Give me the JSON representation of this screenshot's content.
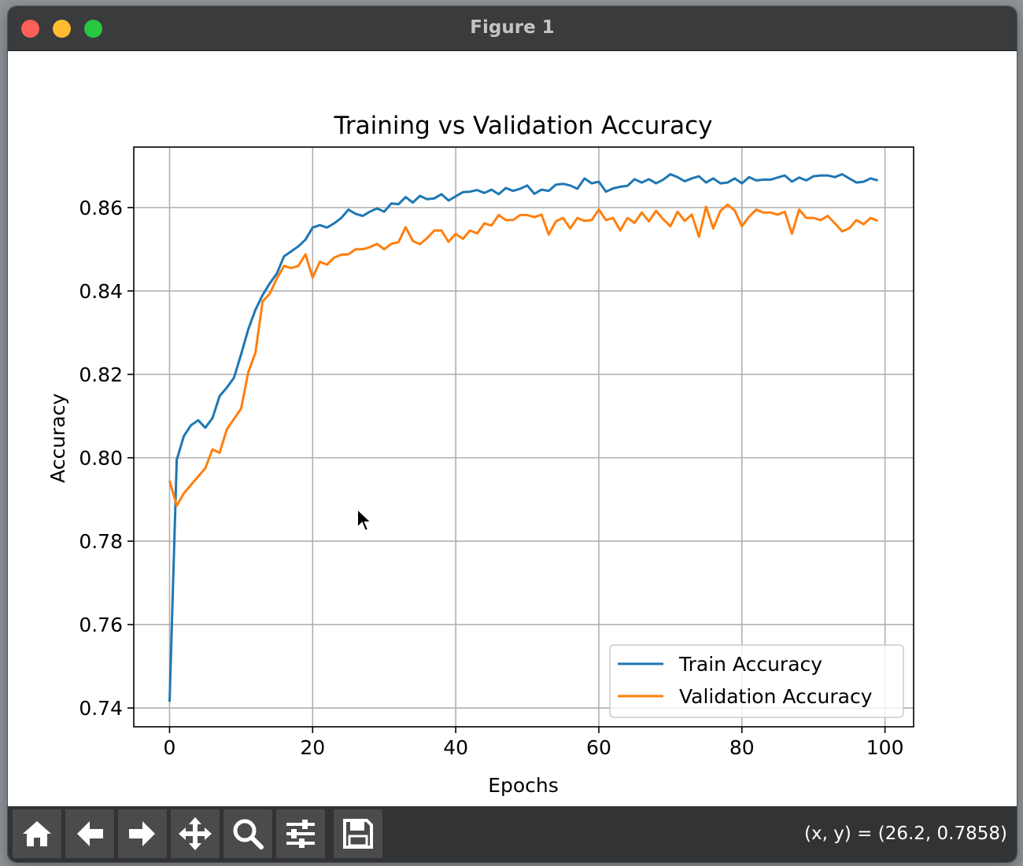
{
  "window": {
    "title": "Figure 1"
  },
  "toolbar": {
    "tools": [
      {
        "name": "home",
        "icon": "home-icon"
      },
      {
        "name": "back",
        "icon": "arrow-left-icon"
      },
      {
        "name": "forward",
        "icon": "arrow-right-icon"
      },
      {
        "name": "pan",
        "icon": "move-icon"
      },
      {
        "name": "zoom",
        "icon": "magnifier-icon"
      },
      {
        "name": "configure-subplots",
        "icon": "sliders-icon"
      },
      {
        "name": "save",
        "icon": "floppy-disk-icon"
      }
    ],
    "coords": "(x, y) = (26.2, 0.7858)"
  },
  "chart_data": {
    "type": "line",
    "title": "Training vs Validation Accuracy",
    "xlabel": "Epochs",
    "ylabel": "Accuracy",
    "xlim": [
      -5,
      104
    ],
    "ylim": [
      0.7355,
      0.8745
    ],
    "xticks": [
      0,
      20,
      40,
      60,
      80,
      100
    ],
    "yticks": [
      0.74,
      0.76,
      0.78,
      0.8,
      0.82,
      0.84,
      0.86
    ],
    "ytick_labels": [
      "0.74",
      "0.76",
      "0.78",
      "0.80",
      "0.82",
      "0.84",
      "0.86"
    ],
    "grid": true,
    "legend": "lower-right",
    "series": [
      {
        "name": "Train Accuracy",
        "color": "#1f77b4",
        "values": [
          0.7415,
          0.7995,
          0.8052,
          0.8078,
          0.809,
          0.8072,
          0.8095,
          0.8148,
          0.8168,
          0.8192,
          0.8248,
          0.8308,
          0.8355,
          0.839,
          0.8418,
          0.8442,
          0.8483,
          0.8495,
          0.8507,
          0.8523,
          0.8552,
          0.8558,
          0.8552,
          0.8562,
          0.8575,
          0.8595,
          0.8585,
          0.858,
          0.859,
          0.8598,
          0.859,
          0.861,
          0.8608,
          0.8625,
          0.8612,
          0.8628,
          0.862,
          0.8622,
          0.8632,
          0.8617,
          0.8627,
          0.8637,
          0.8638,
          0.8642,
          0.8635,
          0.8643,
          0.8632,
          0.8647,
          0.864,
          0.8645,
          0.8653,
          0.8633,
          0.8643,
          0.864,
          0.8655,
          0.8657,
          0.8653,
          0.8645,
          0.867,
          0.8658,
          0.8662,
          0.8638,
          0.8646,
          0.865,
          0.8652,
          0.8668,
          0.866,
          0.8668,
          0.8658,
          0.8667,
          0.868,
          0.8673,
          0.8663,
          0.867,
          0.8675,
          0.866,
          0.867,
          0.8658,
          0.866,
          0.867,
          0.8658,
          0.8673,
          0.8665,
          0.8667,
          0.8667,
          0.8672,
          0.8677,
          0.8662,
          0.8672,
          0.8665,
          0.8675,
          0.8677,
          0.8677,
          0.8673,
          0.868,
          0.867,
          0.866,
          0.8662,
          0.867,
          0.8665
        ]
      },
      {
        "name": "Validation Accuracy",
        "color": "#ff7f0e",
        "values": [
          0.7945,
          0.7885,
          0.7915,
          0.7935,
          0.7955,
          0.7975,
          0.802,
          0.8012,
          0.8068,
          0.8093,
          0.8118,
          0.8205,
          0.8252,
          0.8375,
          0.8393,
          0.843,
          0.846,
          0.8455,
          0.846,
          0.8488,
          0.8432,
          0.847,
          0.8463,
          0.848,
          0.8487,
          0.8488,
          0.85,
          0.85,
          0.8505,
          0.8513,
          0.85,
          0.8513,
          0.8517,
          0.8553,
          0.852,
          0.8512,
          0.8527,
          0.8545,
          0.8545,
          0.8518,
          0.8537,
          0.8525,
          0.8545,
          0.8538,
          0.8562,
          0.8557,
          0.8582,
          0.857,
          0.857,
          0.8582,
          0.8582,
          0.8577,
          0.8583,
          0.8535,
          0.8567,
          0.8575,
          0.855,
          0.8575,
          0.8568,
          0.857,
          0.8595,
          0.857,
          0.8575,
          0.8545,
          0.8575,
          0.8563,
          0.8588,
          0.8567,
          0.8592,
          0.8572,
          0.8555,
          0.859,
          0.8568,
          0.8583,
          0.853,
          0.8602,
          0.855,
          0.8592,
          0.8607,
          0.8593,
          0.8555,
          0.8578,
          0.8595,
          0.8588,
          0.8588,
          0.8583,
          0.859,
          0.8537,
          0.8595,
          0.8575,
          0.8575,
          0.857,
          0.858,
          0.8562,
          0.8543,
          0.855,
          0.857,
          0.856,
          0.8575,
          0.8568
        ]
      }
    ]
  }
}
